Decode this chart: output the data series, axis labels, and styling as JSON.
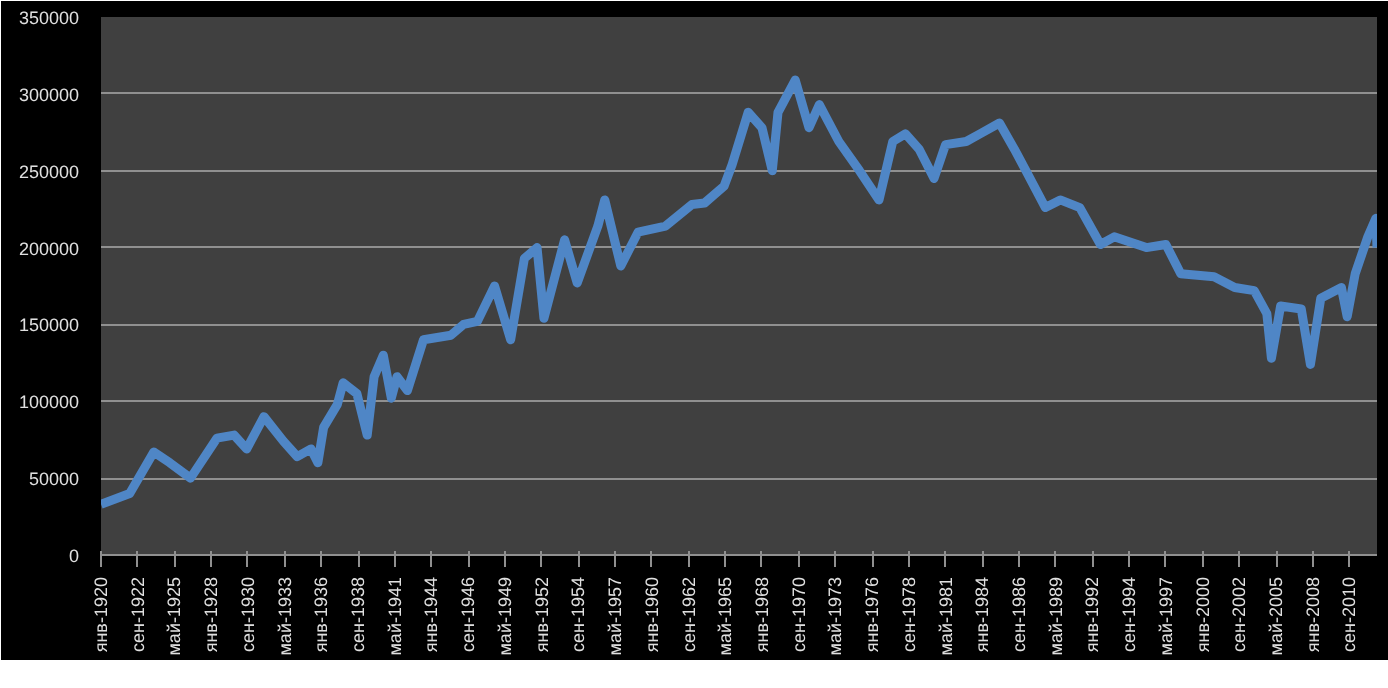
{
  "chart_data": {
    "type": "line",
    "grid": "y",
    "xlim": [
      "1920-01",
      "2012-09"
    ],
    "ylim": [
      0,
      350000
    ],
    "yticks": [
      0,
      50000,
      100000,
      150000,
      200000,
      250000,
      300000,
      350000
    ],
    "xticks": [
      {
        "value": "1920-01",
        "label": "янв-1920"
      },
      {
        "value": "1922-09",
        "label": "сен-1922"
      },
      {
        "value": "1925-05",
        "label": "май-1925"
      },
      {
        "value": "1928-01",
        "label": "янв-1928"
      },
      {
        "value": "1930-09",
        "label": "сен-1930"
      },
      {
        "value": "1933-05",
        "label": "май-1933"
      },
      {
        "value": "1936-01",
        "label": "янв-1936"
      },
      {
        "value": "1938-09",
        "label": "сен-1938"
      },
      {
        "value": "1941-05",
        "label": "май-1941"
      },
      {
        "value": "1944-01",
        "label": "янв-1944"
      },
      {
        "value": "1946-09",
        "label": "сен-1946"
      },
      {
        "value": "1949-05",
        "label": "май-1949"
      },
      {
        "value": "1952-01",
        "label": "янв-1952"
      },
      {
        "value": "1954-09",
        "label": "сен-1954"
      },
      {
        "value": "1957-05",
        "label": "май-1957"
      },
      {
        "value": "1960-01",
        "label": "янв-1960"
      },
      {
        "value": "1962-09",
        "label": "сен-1962"
      },
      {
        "value": "1965-05",
        "label": "май-1965"
      },
      {
        "value": "1968-01",
        "label": "янв-1968"
      },
      {
        "value": "1970-09",
        "label": "сен-1970"
      },
      {
        "value": "1973-05",
        "label": "май-1973"
      },
      {
        "value": "1976-01",
        "label": "янв-1976"
      },
      {
        "value": "1978-09",
        "label": "сен-1978"
      },
      {
        "value": "1981-05",
        "label": "май-1981"
      },
      {
        "value": "1984-01",
        "label": "янв-1984"
      },
      {
        "value": "1986-09",
        "label": "сен-1986"
      },
      {
        "value": "1989-05",
        "label": "май-1989"
      },
      {
        "value": "1992-01",
        "label": "янв-1992"
      },
      {
        "value": "1994-09",
        "label": "сен-1994"
      },
      {
        "value": "1997-05",
        "label": "май-1997"
      },
      {
        "value": "2000-01",
        "label": "янв-2000"
      },
      {
        "value": "2002-09",
        "label": "сен-2002"
      },
      {
        "value": "2005-05",
        "label": "май-2005"
      },
      {
        "value": "2008-01",
        "label": "янв-2008"
      },
      {
        "value": "2010-09",
        "label": "сен-2010"
      }
    ],
    "series": [
      {
        "color": "#4f86c6",
        "x": [
          "1920-01",
          "1922-02",
          "1923-11",
          "1925-01",
          "1926-07",
          "1928-06",
          "1929-09",
          "1930-08",
          "1931-11",
          "1933-04",
          "1934-04",
          "1935-04",
          "1935-10",
          "1936-03",
          "1937-03",
          "1937-08",
          "1938-08",
          "1939-05",
          "1939-11",
          "1940-07",
          "1941-02",
          "1941-07",
          "1942-04",
          "1943-06",
          "1945-06",
          "1946-05",
          "1947-05",
          "1948-08",
          "1949-10",
          "1950-10",
          "1951-09",
          "1952-03",
          "1953-09",
          "1954-08",
          "1956-02",
          "1956-08",
          "1957-10",
          "1959-01",
          "1961-01",
          "1962-12",
          "1963-11",
          "1965-04",
          "1965-11",
          "1967-01",
          "1968-01",
          "1968-10",
          "1969-03",
          "1970-06",
          "1971-06",
          "1972-03",
          "1973-08",
          "1975-02",
          "1976-07",
          "1977-07",
          "1978-06",
          "1979-06",
          "1980-07",
          "1981-05",
          "1982-11",
          "1983-11",
          "1985-04",
          "1986-05",
          "1987-03",
          "1988-08",
          "1989-09",
          "1991-02",
          "1992-08",
          "1993-08",
          "1995-12",
          "1997-05",
          "1998-06",
          "2000-11",
          "2002-05",
          "2003-10",
          "2004-09",
          "2005-01",
          "2005-09",
          "2007-03",
          "2007-11",
          "2008-08",
          "2010-02",
          "2010-07",
          "2011-02",
          "2012-01",
          "2012-08",
          "2012-09"
        ],
        "values": [
          33000,
          40000,
          67000,
          60000,
          50000,
          76000,
          78000,
          69000,
          90000,
          74000,
          64000,
          69000,
          60000,
          83000,
          98000,
          112000,
          105000,
          78000,
          116000,
          130000,
          102000,
          116000,
          107000,
          140000,
          143000,
          150000,
          152000,
          175000,
          140000,
          193000,
          200000,
          154000,
          205000,
          177000,
          214000,
          231000,
          188000,
          210000,
          214000,
          228000,
          229000,
          240000,
          254000,
          288000,
          278000,
          250000,
          288000,
          309000,
          278000,
          293000,
          269000,
          250000,
          231000,
          269000,
          274000,
          264000,
          245000,
          267000,
          269000,
          274000,
          281000,
          264000,
          250000,
          226000,
          231000,
          226000,
          202000,
          207000,
          200000,
          202000,
          183000,
          181000,
          174000,
          172000,
          157000,
          128000,
          162000,
          160000,
          124000,
          167000,
          174000,
          155000,
          183000,
          207000,
          219000,
          200000
        ]
      }
    ]
  }
}
